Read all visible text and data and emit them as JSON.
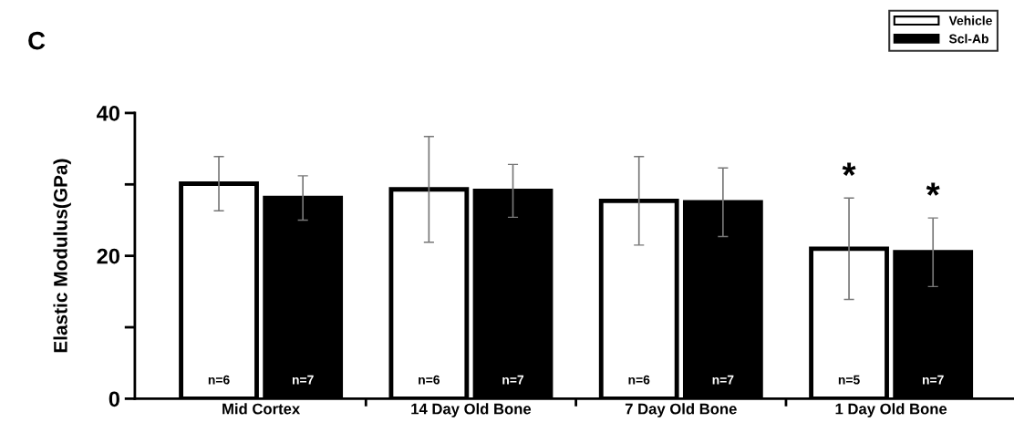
{
  "chart_data": {
    "type": "bar",
    "title": "C",
    "ylabel": "Elastic Modulus(GPa)",
    "categories": [
      "Mid Cortex",
      "14 Day Old Bone",
      "7 Day Old Bone",
      "1 Day Old Bone"
    ],
    "series": [
      {
        "name": "Vehicle",
        "color": "#ffffff",
        "values": [
          30.1,
          29.3,
          27.7,
          21.0
        ],
        "errors": [
          3.8,
          7.4,
          6.2,
          7.1
        ]
      },
      {
        "name": "Scl-Ab",
        "color": "#000000",
        "values": [
          28.1,
          29.1,
          27.5,
          20.5
        ],
        "errors": [
          3.1,
          3.7,
          4.8,
          4.8
        ]
      }
    ],
    "ylim": [
      0,
      40
    ],
    "yticks": [
      0,
      {
        "value": 10,
        "label": null
      },
      20,
      {
        "value": 30,
        "label": null
      },
      40
    ],
    "grid": false,
    "legend": "top right",
    "annotations": [
      "n=6",
      "n=6",
      "n=6",
      "n=5",
      "n=7",
      "n=7",
      "n=7",
      "n=7",
      "*",
      "*"
    ]
  }
}
